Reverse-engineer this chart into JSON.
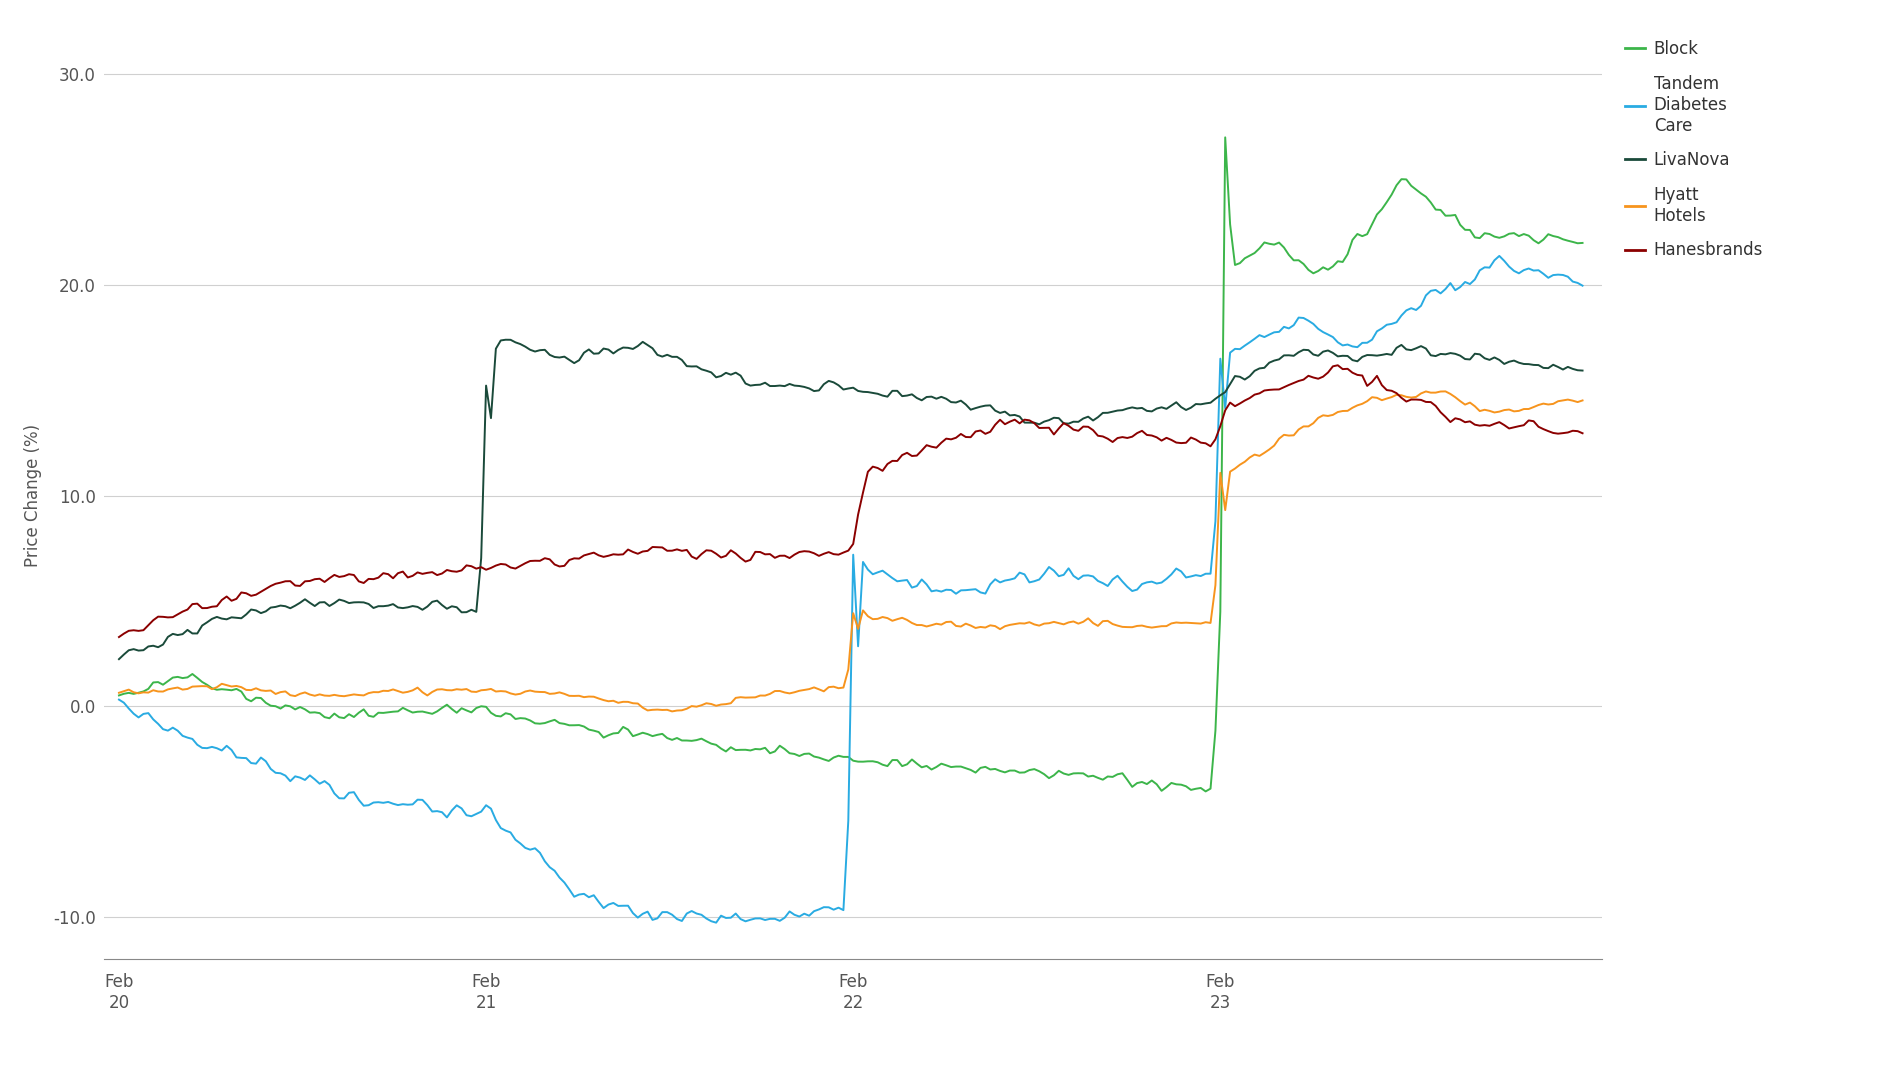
{
  "ylabel": "Price Change (%)",
  "ylim": [
    -12,
    32
  ],
  "yticks": [
    -10.0,
    0.0,
    10.0,
    20.0,
    30.0
  ],
  "background_color": "#ffffff",
  "grid_color": "#d0d0d0",
  "line_colors": [
    "#3cb54a",
    "#29abe2",
    "#1a4a3a",
    "#f7941d",
    "#8b0000"
  ],
  "line_widths": [
    1.4,
    1.4,
    1.4,
    1.4,
    1.4
  ],
  "n_points": 300
}
